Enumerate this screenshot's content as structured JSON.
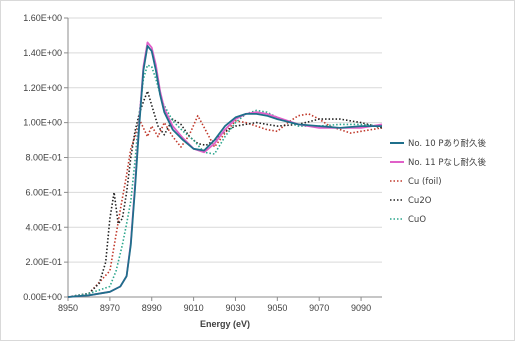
{
  "chart_data": {
    "type": "line",
    "title": "",
    "xlabel": "Energy (eV)",
    "ylabel": "",
    "xlim": [
      8950,
      9100
    ],
    "ylim": [
      0,
      1.6
    ],
    "x_ticks": [
      "8950",
      "8970",
      "8990",
      "9010",
      "9030",
      "9050",
      "9070",
      "9090"
    ],
    "y_ticks": [
      "0.00E+00",
      "2.00E-01",
      "4.00E-01",
      "6.00E-01",
      "8.00E-01",
      "1.00E+00",
      "1.20E+00",
      "1.40E+00",
      "1.60E+00"
    ],
    "grid": "horizontal",
    "legend_position": "right",
    "series": [
      {
        "name": "No. 10 Pあり耐久後",
        "color": "#1f6f8b",
        "style": "solid",
        "x": [
          8950,
          8960,
          8970,
          8975,
          8978,
          8980,
          8982,
          8984,
          8986,
          8988,
          8990,
          8992,
          8994,
          8996,
          9000,
          9005,
          9010,
          9015,
          9020,
          9025,
          9030,
          9035,
          9040,
          9045,
          9050,
          9060,
          9070,
          9080,
          9090,
          9100
        ],
        "y": [
          0,
          0.01,
          0.03,
          0.06,
          0.12,
          0.3,
          0.62,
          0.98,
          1.3,
          1.44,
          1.41,
          1.3,
          1.16,
          1.06,
          0.96,
          0.9,
          0.85,
          0.84,
          0.9,
          0.98,
          1.03,
          1.05,
          1.05,
          1.04,
          1.02,
          0.99,
          0.98,
          0.97,
          0.98,
          0.98
        ]
      },
      {
        "name": "No. 11 Pなし耐久後",
        "color": "#e060c8",
        "style": "solid",
        "x": [
          8950,
          8960,
          8970,
          8975,
          8978,
          8980,
          8982,
          8984,
          8986,
          8988,
          8990,
          8992,
          8994,
          8996,
          9000,
          9005,
          9010,
          9015,
          9020,
          9025,
          9030,
          9035,
          9040,
          9045,
          9050,
          9060,
          9070,
          9080,
          9090,
          9100
        ],
        "y": [
          0,
          0.01,
          0.03,
          0.06,
          0.12,
          0.31,
          0.64,
          1.0,
          1.32,
          1.46,
          1.43,
          1.33,
          1.18,
          1.08,
          0.98,
          0.91,
          0.85,
          0.83,
          0.88,
          0.96,
          1.02,
          1.05,
          1.06,
          1.05,
          1.03,
          0.99,
          0.97,
          0.97,
          0.97,
          0.99
        ]
      },
      {
        "name": "Cu (foil)",
        "color": "#c0392b",
        "style": "dotted",
        "x": [
          8950,
          8960,
          8970,
          8975,
          8978,
          8980,
          8982,
          8984,
          8986,
          8988,
          8990,
          8993,
          8996,
          9000,
          9004,
          9008,
          9012,
          9016,
          9020,
          9025,
          9030,
          9035,
          9040,
          9045,
          9050,
          9055,
          9060,
          9065,
          9070,
          9075,
          9080,
          9085,
          9090,
          9095,
          9100
        ],
        "y": [
          0,
          0.02,
          0.15,
          0.5,
          0.7,
          0.85,
          0.92,
          1.02,
          0.97,
          0.92,
          0.98,
          0.92,
          1.0,
          0.92,
          0.86,
          0.93,
          1.04,
          0.95,
          0.86,
          0.94,
          1.01,
          1.0,
          0.98,
          0.96,
          0.95,
          1.0,
          1.04,
          1.05,
          1.02,
          0.98,
          0.96,
          0.94,
          0.95,
          0.96,
          0.97
        ]
      },
      {
        "name": "Cu2O",
        "color": "#222222",
        "style": "dotted",
        "x": [
          8950,
          8960,
          8965,
          8968,
          8970,
          8972,
          8974,
          8976,
          8978,
          8980,
          8982,
          8984,
          8986,
          8988,
          8990,
          8993,
          8996,
          9000,
          9004,
          9008,
          9012,
          9016,
          9020,
          9025,
          9030,
          9040,
          9050,
          9060,
          9070,
          9080,
          9090,
          9100
        ],
        "y": [
          0,
          0.02,
          0.08,
          0.2,
          0.45,
          0.6,
          0.42,
          0.45,
          0.6,
          0.8,
          0.95,
          1.05,
          1.12,
          1.18,
          1.1,
          0.98,
          0.93,
          1.02,
          0.99,
          0.92,
          0.88,
          0.87,
          0.9,
          0.95,
          0.98,
          1.0,
          0.98,
          0.99,
          1.02,
          1.02,
          1.0,
          0.97
        ]
      },
      {
        "name": "CuO",
        "color": "#2aa58c",
        "style": "dotted",
        "x": [
          8950,
          8960,
          8970,
          8973,
          8976,
          8978,
          8980,
          8982,
          8984,
          8986,
          8988,
          8990,
          8992,
          8995,
          9000,
          9005,
          9010,
          9015,
          9020,
          9025,
          9030,
          9035,
          9040,
          9045,
          9050,
          9060,
          9070,
          9080,
          9090,
          9100
        ],
        "y": [
          0,
          0.02,
          0.06,
          0.15,
          0.3,
          0.42,
          0.55,
          0.78,
          1.05,
          1.25,
          1.33,
          1.32,
          1.25,
          1.12,
          1.01,
          0.95,
          0.9,
          0.83,
          0.82,
          0.92,
          1.0,
          1.05,
          1.07,
          1.06,
          1.03,
          0.98,
          0.98,
          0.99,
          0.99,
          0.98
        ]
      }
    ]
  }
}
